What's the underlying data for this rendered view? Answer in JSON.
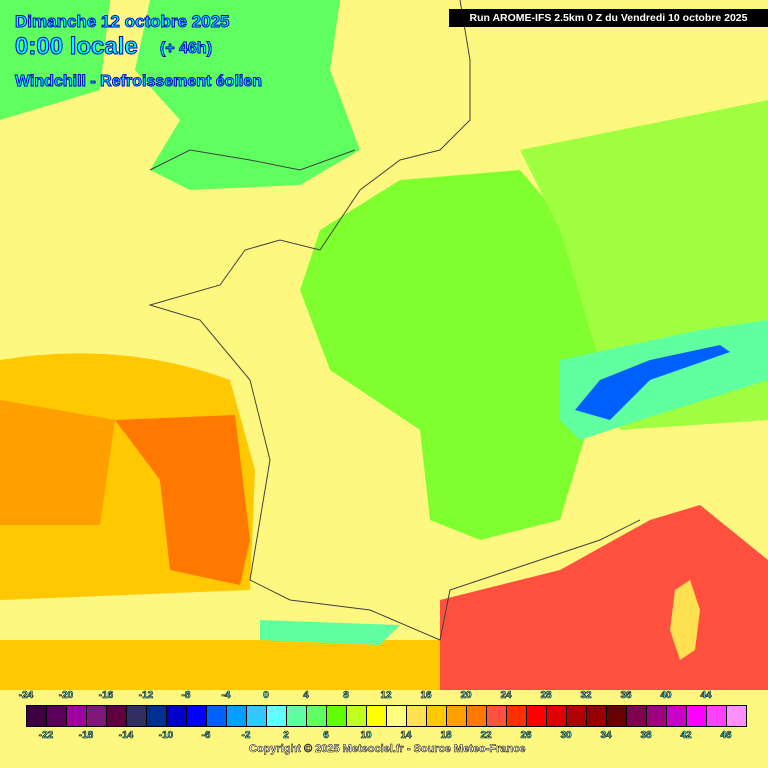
{
  "header": {
    "date": "Dimanche 12 octobre 2025",
    "time": "0:00 locale",
    "lead": "(+ 46h)",
    "parameter": "Windchill - Refroissement éolien",
    "run": "Run AROME-IFS 2.5km 0 Z du Vendredi 10 octobre 2025"
  },
  "legend": {
    "labels_top": [
      "-24",
      "-20",
      "-16",
      "-12",
      "-8",
      "-4",
      "0",
      "4",
      "8",
      "12",
      "16",
      "20",
      "24",
      "28",
      "32",
      "36",
      "40",
      "44"
    ],
    "labels_bottom": [
      "-22",
      "-18",
      "-14",
      "-10",
      "-6",
      "-2",
      "2",
      "6",
      "10",
      "14",
      "18",
      "22",
      "26",
      "30",
      "34",
      "38",
      "42",
      "46"
    ],
    "colors": [
      "#3c0040",
      "#5a0058",
      "#a000a0",
      "#80187a",
      "#600040",
      "#303060",
      "#003090",
      "#0000c8",
      "#0000ff",
      "#0060ff",
      "#00a0ff",
      "#30c8ff",
      "#60ffff",
      "#60ffa0",
      "#60ff60",
      "#60ff00",
      "#c0ff20",
      "#ffff00",
      "#ffff80",
      "#ffe050",
      "#ffc800",
      "#ffa000",
      "#ff7800",
      "#ff5040",
      "#ff3000",
      "#ff0000",
      "#e00000",
      "#b00000",
      "#980000",
      "#680000",
      "#800050",
      "#a00080",
      "#c800c8",
      "#ff00ff",
      "#ff40ff",
      "#ff90ff"
    ]
  },
  "footer": {
    "copyright": "Copyright © 2025 Meteociel.fr - Source Meteo-France"
  }
}
